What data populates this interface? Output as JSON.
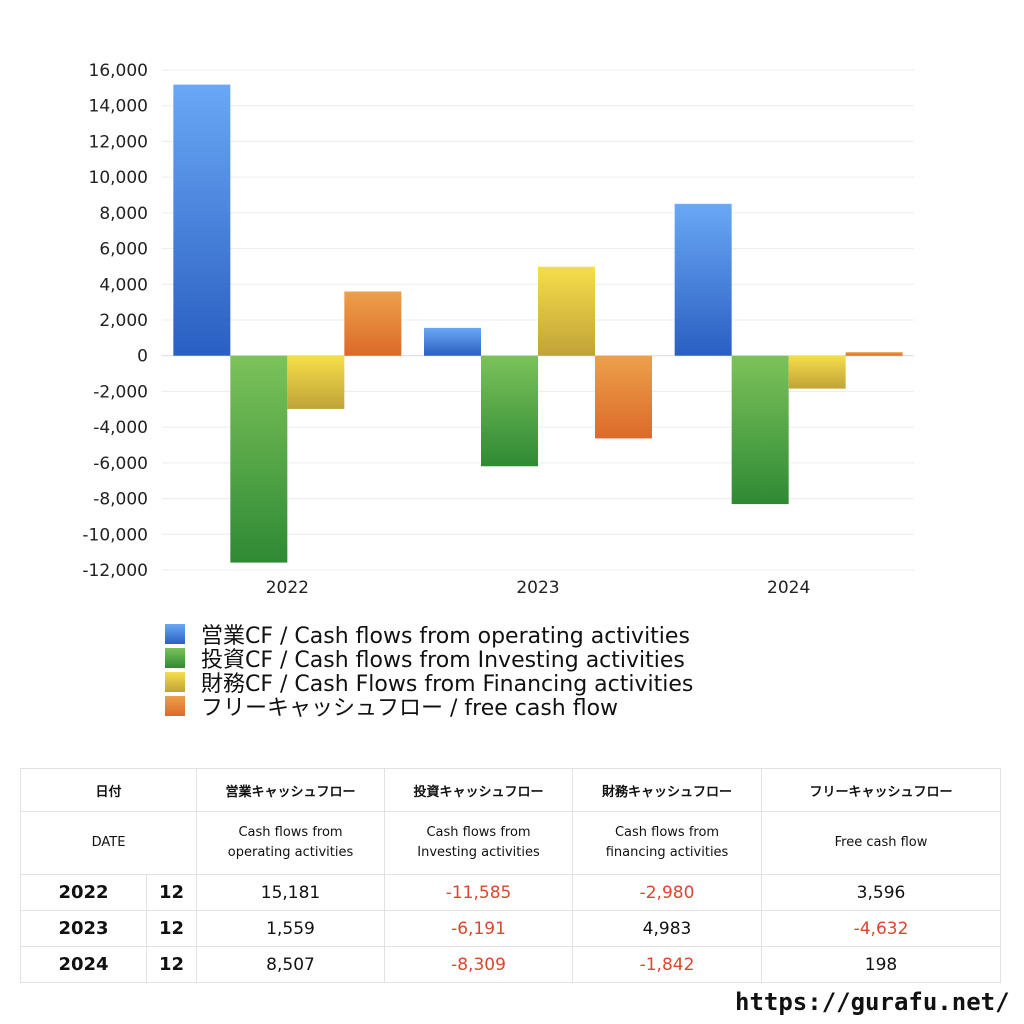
{
  "chart_data": {
    "type": "bar",
    "categories": [
      "2022",
      "2023",
      "2024"
    ],
    "series": [
      {
        "name": "営業CF / Cash flows from operating activities",
        "values": [
          15181,
          1559,
          8507
        ],
        "color_top": "#6aa8f5",
        "color_bottom": "#2a5fc2"
      },
      {
        "name": "投資CF / Cash flows from Investing activities",
        "values": [
          -11585,
          -6191,
          -8309
        ],
        "color_top": "#7cc25a",
        "color_bottom": "#2f8a34"
      },
      {
        "name": "財務CF / Cash Flows from Financing activities",
        "values": [
          -2980,
          4983,
          -1842
        ],
        "color_top": "#f5de4a",
        "color_bottom": "#c0a338"
      },
      {
        "name": "フリーキャッシュフロー / free cash flow",
        "values": [
          3596,
          -4632,
          198
        ],
        "color_top": "#eda04a",
        "color_bottom": "#db6a2a"
      }
    ],
    "ylim": [
      -12000,
      16000
    ],
    "yticks": [
      16000,
      14000,
      12000,
      10000,
      8000,
      6000,
      4000,
      2000,
      0,
      -2000,
      -4000,
      -6000,
      -8000,
      -10000,
      -12000
    ],
    "ytick_labels": [
      "16,000",
      "14,000",
      "12,000",
      "10,000",
      "8,000",
      "6,000",
      "4,000",
      "2,000",
      "0",
      "-2,000",
      "-4,000",
      "-6,000",
      "-8,000",
      "-10,000",
      "-12,000"
    ],
    "grid": true,
    "legend_position": "bottom-left"
  },
  "table": {
    "header_jp": [
      "日付",
      "営業キャッシュフロー",
      "投資キャッシュフロー",
      "財務キャッシュフロー",
      "フリーキャッシュフロー"
    ],
    "header_en": [
      "DATE",
      "Cash flows from\noperating activities",
      "Cash flows from\nInvesting activities",
      "Cash flows from\nfinancing activities",
      "Free cash flow"
    ],
    "rows": [
      {
        "year": "2022",
        "month": "12",
        "values": [
          "15,181",
          "-11,585",
          "-2,980",
          "3,596"
        ]
      },
      {
        "year": "2023",
        "month": "12",
        "values": [
          "1,559",
          "-6,191",
          "4,983",
          "-4,632"
        ]
      },
      {
        "year": "2024",
        "month": "12",
        "values": [
          "8,507",
          "-8,309",
          "-1,842",
          "198"
        ]
      }
    ],
    "negative_color": "#d9482b"
  },
  "footer": {
    "url": "https://gurafu.net/"
  }
}
